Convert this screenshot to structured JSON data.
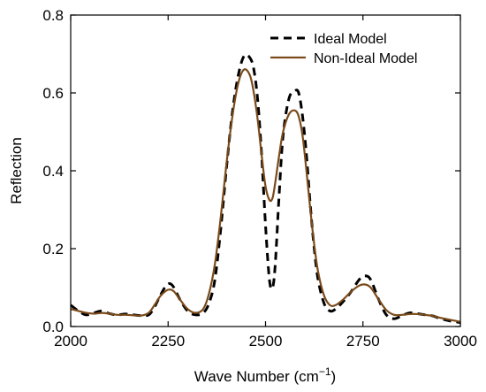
{
  "chart_data": {
    "type": "line",
    "xlabel": "Wave Number (cm",
    "xlabel_sup": "−1",
    "xlabel_close": ")",
    "ylabel": "Reflection",
    "xlim": [
      2000,
      3000
    ],
    "ylim": [
      0,
      0.8
    ],
    "x_ticks": [
      2000,
      2250,
      2500,
      2750,
      3000
    ],
    "y_ticks": [
      0.0,
      0.2,
      0.4,
      0.6,
      0.8
    ],
    "x_tick_labels": [
      "2000",
      "2250",
      "2500",
      "2750",
      "3000"
    ],
    "y_tick_labels": [
      "0.0",
      "0.2",
      "0.4",
      "0.6",
      "0.8"
    ],
    "grid": false,
    "legend_position": "top-right",
    "series": [
      {
        "name": "Ideal Model",
        "color": "#000000",
        "style": "dashed",
        "x": [
          2000,
          2020,
          2040,
          2060,
          2080,
          2100,
          2120,
          2140,
          2160,
          2180,
          2200,
          2215,
          2230,
          2245,
          2255,
          2265,
          2280,
          2300,
          2320,
          2340,
          2355,
          2370,
          2385,
          2400,
          2415,
          2430,
          2445,
          2460,
          2470,
          2480,
          2490,
          2500,
          2510,
          2518,
          2525,
          2535,
          2545,
          2560,
          2575,
          2585,
          2595,
          2605,
          2615,
          2625,
          2635,
          2650,
          2665,
          2680,
          2700,
          2720,
          2740,
          2755,
          2770,
          2790,
          2810,
          2830,
          2850,
          2870,
          2890,
          2910,
          2930,
          2950,
          2970,
          2990,
          3000
        ],
        "y": [
          0.055,
          0.04,
          0.03,
          0.035,
          0.04,
          0.033,
          0.03,
          0.032,
          0.03,
          0.028,
          0.03,
          0.05,
          0.08,
          0.105,
          0.11,
          0.1,
          0.07,
          0.04,
          0.03,
          0.035,
          0.06,
          0.12,
          0.25,
          0.41,
          0.55,
          0.645,
          0.695,
          0.69,
          0.66,
          0.58,
          0.44,
          0.26,
          0.12,
          0.1,
          0.16,
          0.34,
          0.49,
          0.585,
          0.605,
          0.6,
          0.54,
          0.44,
          0.31,
          0.2,
          0.12,
          0.06,
          0.04,
          0.045,
          0.065,
          0.09,
          0.12,
          0.13,
          0.12,
          0.07,
          0.03,
          0.02,
          0.028,
          0.035,
          0.033,
          0.03,
          0.027,
          0.02,
          0.015,
          0.012,
          0.01
        ]
      },
      {
        "name": "Non-Ideal Model",
        "color": "#7a4a1a",
        "style": "solid",
        "x": [
          2000,
          2020,
          2040,
          2060,
          2080,
          2100,
          2120,
          2140,
          2160,
          2180,
          2200,
          2215,
          2230,
          2245,
          2255,
          2265,
          2280,
          2300,
          2320,
          2340,
          2355,
          2370,
          2385,
          2400,
          2415,
          2430,
          2445,
          2460,
          2470,
          2480,
          2490,
          2500,
          2510,
          2518,
          2525,
          2535,
          2545,
          2560,
          2575,
          2585,
          2595,
          2605,
          2615,
          2625,
          2635,
          2650,
          2665,
          2680,
          2700,
          2720,
          2740,
          2755,
          2770,
          2790,
          2810,
          2830,
          2850,
          2870,
          2890,
          2910,
          2930,
          2950,
          2970,
          2990,
          3000
        ],
        "y": [
          0.045,
          0.04,
          0.035,
          0.033,
          0.035,
          0.033,
          0.03,
          0.03,
          0.029,
          0.028,
          0.035,
          0.055,
          0.078,
          0.092,
          0.095,
          0.09,
          0.07,
          0.045,
          0.035,
          0.045,
          0.085,
          0.16,
          0.28,
          0.42,
          0.54,
          0.625,
          0.66,
          0.645,
          0.6,
          0.53,
          0.44,
          0.36,
          0.325,
          0.33,
          0.37,
          0.44,
          0.5,
          0.545,
          0.555,
          0.54,
          0.49,
          0.4,
          0.3,
          0.21,
          0.14,
          0.08,
          0.055,
          0.055,
          0.07,
          0.09,
          0.105,
          0.108,
          0.1,
          0.07,
          0.042,
          0.03,
          0.03,
          0.032,
          0.032,
          0.03,
          0.027,
          0.022,
          0.018,
          0.014,
          0.012
        ]
      }
    ]
  }
}
